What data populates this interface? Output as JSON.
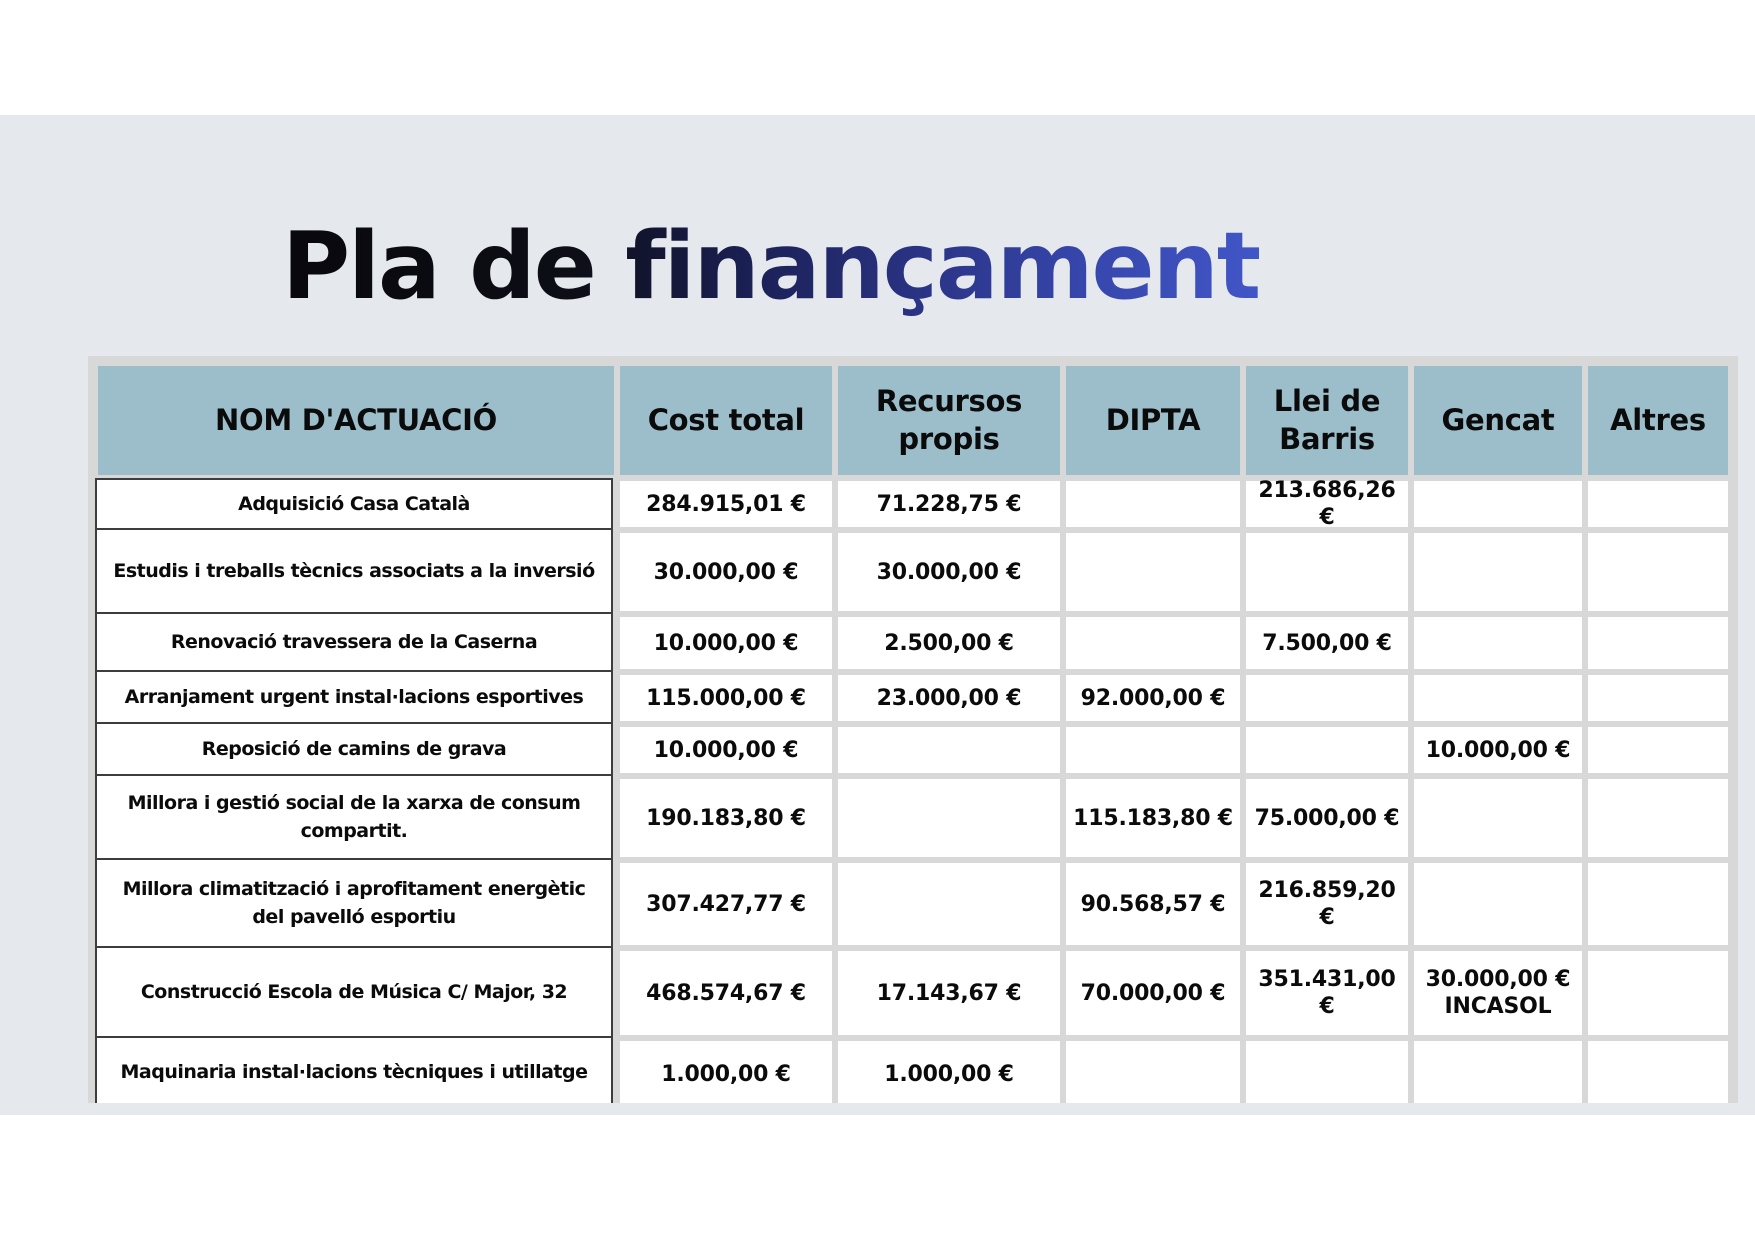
{
  "title": "Pla de finançament",
  "colors": {
    "slide_background": "#e5e8ec",
    "table_frame": "#d8d8d8",
    "header_background": "#9cbecb",
    "first_column_border": "#3d3d3d",
    "title_gradient_start": "#08080d",
    "title_gradient_end": "#4156c7"
  },
  "table": {
    "columns": [
      "NOM D'ACTUACIÓ",
      "Cost total",
      "Recursos propis",
      "DIPTA",
      "Llei de Barris",
      "Gencat",
      "Altres"
    ],
    "rows": [
      {
        "name": "Adquisició Casa Català",
        "values": [
          "284.915,01 €",
          "71.228,75 €",
          "",
          "213.686,26 €",
          "",
          ""
        ]
      },
      {
        "name": "Estudis i treballs tècnics associats a la inversió",
        "values": [
          "30.000,00 €",
          "30.000,00 €",
          "",
          "",
          "",
          ""
        ]
      },
      {
        "name": "Renovació travessera de la Caserna",
        "values": [
          "10.000,00 €",
          "2.500,00 €",
          "",
          "7.500,00 €",
          "",
          ""
        ]
      },
      {
        "name": "Arranjament urgent instal·lacions esportives",
        "values": [
          "115.000,00 €",
          "23.000,00 €",
          "92.000,00 €",
          "",
          "",
          ""
        ]
      },
      {
        "name": "Reposició de camins de grava",
        "values": [
          "10.000,00 €",
          "",
          "",
          "",
          "10.000,00 €",
          ""
        ]
      },
      {
        "name": "Millora i gestió social de la xarxa de consum compartit.",
        "values": [
          "190.183,80 €",
          "",
          "115.183,80 €",
          "75.000,00 €",
          "",
          ""
        ]
      },
      {
        "name": "Millora climatització i aprofitament energètic del pavelló esportiu",
        "values": [
          "307.427,77 €",
          "",
          "90.568,57 €",
          "216.859,20 €",
          "",
          ""
        ]
      },
      {
        "name": "Construcció Escola de Música C/ Major, 32",
        "values": [
          "468.574,67 €",
          "17.143,67 €",
          "70.000,00 €",
          "351.431,00 €",
          "30.000,00 €\nINCASOL",
          ""
        ]
      },
      {
        "name": "Maquinaria instal·lacions tècniques i utillatge",
        "values": [
          "1.000,00 €",
          "1.000,00 €",
          "",
          "",
          "",
          ""
        ]
      }
    ]
  }
}
